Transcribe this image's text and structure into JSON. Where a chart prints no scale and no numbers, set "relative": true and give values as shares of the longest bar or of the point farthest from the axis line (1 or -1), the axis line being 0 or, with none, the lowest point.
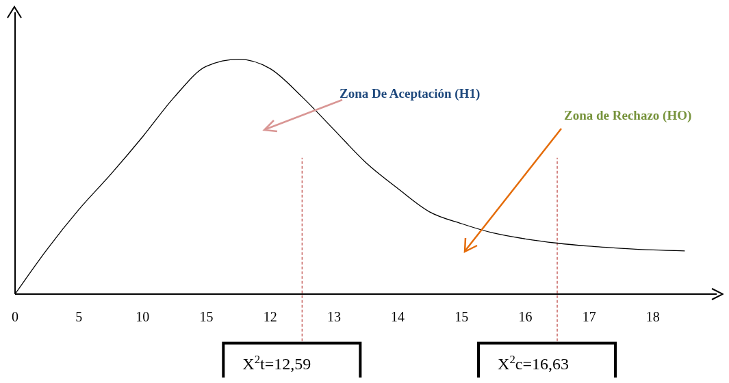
{
  "chart_data": {
    "type": "line",
    "relative": true,
    "categories": [
      "0",
      null,
      "5",
      null,
      "10",
      null,
      "15",
      null,
      "12",
      null,
      "13",
      null,
      "14",
      null,
      "15",
      null,
      "16",
      null,
      "17",
      null,
      "18",
      null,
      null
    ],
    "series": [
      {
        "color": "#000000",
        "values": [
          0,
          0.19,
          0.36,
          0.51,
          0.67,
          0.84,
          0.97,
          1,
          0.96,
          0.84,
          0.7,
          0.56,
          0.45,
          0.35,
          0.3,
          0.26,
          0.235,
          0.217,
          0.204,
          0.195,
          0.188,
          0.184,
          null
        ]
      }
    ],
    "annotations": [
      "Zona De Aceptación (H1)",
      "Zona de Rechazo (HO)",
      "X$^{2}$t=12,59",
      "X$^{2}$c=16,63"
    ],
    "marker": "none",
    "line_style": "solid"
  }
}
